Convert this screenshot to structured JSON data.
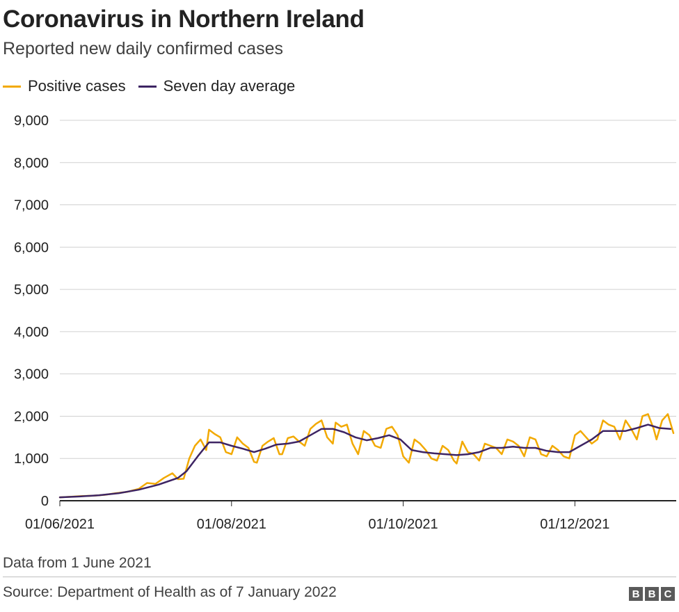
{
  "header": {
    "title": "Coronavirus in Northern Ireland",
    "subtitle": "Reported new daily confirmed cases"
  },
  "legend": {
    "items": [
      {
        "label": "Positive cases",
        "color": "#f2a900"
      },
      {
        "label": "Seven day average",
        "color": "#3d2463"
      }
    ]
  },
  "footer": {
    "note": "Data from 1 June 2021",
    "source": "Source: Department of Health as of 7 January 2022",
    "logo_letters": [
      "B",
      "B",
      "C"
    ]
  },
  "chart_data": {
    "type": "line",
    "title": "Coronavirus in Northern Ireland",
    "subtitle": "Reported new daily confirmed cases",
    "xlabel": "",
    "ylabel": "",
    "x_range": [
      "2021-06-01",
      "2022-01-06"
    ],
    "ylim": [
      0,
      9000
    ],
    "y_ticks": [
      0,
      1000,
      2000,
      3000,
      4000,
      5000,
      6000,
      7000,
      8000,
      9000
    ],
    "y_tick_labels": [
      "0",
      "1,000",
      "2,000",
      "3,000",
      "4,000",
      "5,000",
      "6,000",
      "7,000",
      "8,000",
      "9,000"
    ],
    "x_ticks": [
      "2021-06-01",
      "2021-08-01",
      "2021-10-01",
      "2021-12-01"
    ],
    "x_tick_labels": [
      "01/06/2021",
      "01/08/2021",
      "01/10/2021",
      "01/12/2021"
    ],
    "grid": "horizontal",
    "legend_position": "top-left",
    "series": [
      {
        "name": "Positive cases",
        "color": "#f2a900",
        "points": [
          [
            "2021-06-01",
            80
          ],
          [
            "2021-06-05",
            95
          ],
          [
            "2021-06-09",
            110
          ],
          [
            "2021-06-13",
            120
          ],
          [
            "2021-06-17",
            140
          ],
          [
            "2021-06-21",
            180
          ],
          [
            "2021-06-25",
            210
          ],
          [
            "2021-06-29",
            280
          ],
          [
            "2021-07-02",
            420
          ],
          [
            "2021-07-05",
            400
          ],
          [
            "2021-07-08",
            540
          ],
          [
            "2021-07-11",
            650
          ],
          [
            "2021-07-13",
            510
          ],
          [
            "2021-07-15",
            520
          ],
          [
            "2021-07-17",
            1000
          ],
          [
            "2021-07-19",
            1300
          ],
          [
            "2021-07-21",
            1450
          ],
          [
            "2021-07-23",
            1200
          ],
          [
            "2021-07-24",
            1680
          ],
          [
            "2021-07-26",
            1580
          ],
          [
            "2021-07-28",
            1500
          ],
          [
            "2021-07-30",
            1150
          ],
          [
            "2021-08-01",
            1100
          ],
          [
            "2021-08-03",
            1500
          ],
          [
            "2021-08-05",
            1350
          ],
          [
            "2021-08-07",
            1250
          ],
          [
            "2021-08-09",
            920
          ],
          [
            "2021-08-10",
            900
          ],
          [
            "2021-08-12",
            1300
          ],
          [
            "2021-08-14",
            1400
          ],
          [
            "2021-08-16",
            1480
          ],
          [
            "2021-08-18",
            1100
          ],
          [
            "2021-08-19",
            1100
          ],
          [
            "2021-08-21",
            1480
          ],
          [
            "2021-08-23",
            1520
          ],
          [
            "2021-08-25",
            1400
          ],
          [
            "2021-08-27",
            1300
          ],
          [
            "2021-08-29",
            1700
          ],
          [
            "2021-08-31",
            1820
          ],
          [
            "2021-09-02",
            1900
          ],
          [
            "2021-09-04",
            1500
          ],
          [
            "2021-09-06",
            1350
          ],
          [
            "2021-09-07",
            1850
          ],
          [
            "2021-09-09",
            1750
          ],
          [
            "2021-09-11",
            1800
          ],
          [
            "2021-09-13",
            1350
          ],
          [
            "2021-09-15",
            1100
          ],
          [
            "2021-09-17",
            1650
          ],
          [
            "2021-09-19",
            1550
          ],
          [
            "2021-09-21",
            1300
          ],
          [
            "2021-09-23",
            1250
          ],
          [
            "2021-09-25",
            1700
          ],
          [
            "2021-09-27",
            1750
          ],
          [
            "2021-09-29",
            1550
          ],
          [
            "2021-10-01",
            1050
          ],
          [
            "2021-10-03",
            900
          ],
          [
            "2021-10-05",
            1450
          ],
          [
            "2021-10-07",
            1350
          ],
          [
            "2021-10-09",
            1200
          ],
          [
            "2021-10-11",
            1000
          ],
          [
            "2021-10-13",
            950
          ],
          [
            "2021-10-15",
            1300
          ],
          [
            "2021-10-17",
            1200
          ],
          [
            "2021-10-19",
            950
          ],
          [
            "2021-10-20",
            880
          ],
          [
            "2021-10-22",
            1400
          ],
          [
            "2021-10-24",
            1150
          ],
          [
            "2021-10-26",
            1100
          ],
          [
            "2021-10-28",
            950
          ],
          [
            "2021-10-30",
            1350
          ],
          [
            "2021-11-01",
            1300
          ],
          [
            "2021-11-03",
            1250
          ],
          [
            "2021-11-05",
            1100
          ],
          [
            "2021-11-07",
            1450
          ],
          [
            "2021-11-09",
            1400
          ],
          [
            "2021-11-11",
            1300
          ],
          [
            "2021-11-13",
            1050
          ],
          [
            "2021-11-15",
            1500
          ],
          [
            "2021-11-17",
            1450
          ],
          [
            "2021-11-19",
            1100
          ],
          [
            "2021-11-21",
            1050
          ],
          [
            "2021-11-23",
            1300
          ],
          [
            "2021-11-25",
            1200
          ],
          [
            "2021-11-27",
            1050
          ],
          [
            "2021-11-29",
            1000
          ],
          [
            "2021-12-01",
            1550
          ],
          [
            "2021-12-03",
            1650
          ],
          [
            "2021-12-05",
            1500
          ],
          [
            "2021-12-07",
            1350
          ],
          [
            "2021-12-09",
            1450
          ],
          [
            "2021-12-11",
            1900
          ],
          [
            "2021-12-13",
            1800
          ],
          [
            "2021-12-15",
            1750
          ],
          [
            "2021-12-17",
            1450
          ],
          [
            "2021-12-19",
            1900
          ],
          [
            "2021-12-21",
            1700
          ],
          [
            "2021-12-23",
            1450
          ],
          [
            "2021-12-25",
            2000
          ],
          [
            "2021-12-27",
            2050
          ],
          [
            "2021-12-29",
            1700
          ],
          [
            "2021-12-30",
            1450
          ],
          [
            "2022-01-01",
            1900
          ],
          [
            "2022-01-03",
            2050
          ],
          [
            "2022-01-05",
            1600
          ]
        ]
      },
      {
        "name": "Seven day average",
        "color": "#3d2463",
        "points": [
          [
            "2021-06-01",
            80
          ],
          [
            "2021-06-08",
            100
          ],
          [
            "2021-06-15",
            130
          ],
          [
            "2021-06-22",
            180
          ],
          [
            "2021-06-29",
            260
          ],
          [
            "2021-07-06",
            380
          ],
          [
            "2021-07-13",
            540
          ],
          [
            "2021-07-16",
            700
          ],
          [
            "2021-07-20",
            1050
          ],
          [
            "2021-07-24",
            1380
          ],
          [
            "2021-07-28",
            1380
          ],
          [
            "2021-08-01",
            1300
          ],
          [
            "2021-08-05",
            1230
          ],
          [
            "2021-08-09",
            1150
          ],
          [
            "2021-08-13",
            1230
          ],
          [
            "2021-08-17",
            1330
          ],
          [
            "2021-08-21",
            1350
          ],
          [
            "2021-08-25",
            1400
          ],
          [
            "2021-08-29",
            1550
          ],
          [
            "2021-09-02",
            1700
          ],
          [
            "2021-09-06",
            1700
          ],
          [
            "2021-09-10",
            1620
          ],
          [
            "2021-09-14",
            1500
          ],
          [
            "2021-09-18",
            1430
          ],
          [
            "2021-09-22",
            1480
          ],
          [
            "2021-09-26",
            1550
          ],
          [
            "2021-09-30",
            1450
          ],
          [
            "2021-10-04",
            1200
          ],
          [
            "2021-10-08",
            1150
          ],
          [
            "2021-10-12",
            1120
          ],
          [
            "2021-10-16",
            1100
          ],
          [
            "2021-10-20",
            1080
          ],
          [
            "2021-10-24",
            1100
          ],
          [
            "2021-10-28",
            1150
          ],
          [
            "2021-11-01",
            1250
          ],
          [
            "2021-11-05",
            1250
          ],
          [
            "2021-11-09",
            1280
          ],
          [
            "2021-11-13",
            1250
          ],
          [
            "2021-11-17",
            1250
          ],
          [
            "2021-11-21",
            1180
          ],
          [
            "2021-11-25",
            1150
          ],
          [
            "2021-11-29",
            1150
          ],
          [
            "2021-12-03",
            1300
          ],
          [
            "2021-12-07",
            1450
          ],
          [
            "2021-12-11",
            1650
          ],
          [
            "2021-12-15",
            1650
          ],
          [
            "2021-12-19",
            1650
          ],
          [
            "2021-12-23",
            1720
          ],
          [
            "2021-12-27",
            1800
          ],
          [
            "2021-12-31",
            1720
          ],
          [
            "2022-01-04",
            1700
          ]
        ]
      }
    ]
  }
}
